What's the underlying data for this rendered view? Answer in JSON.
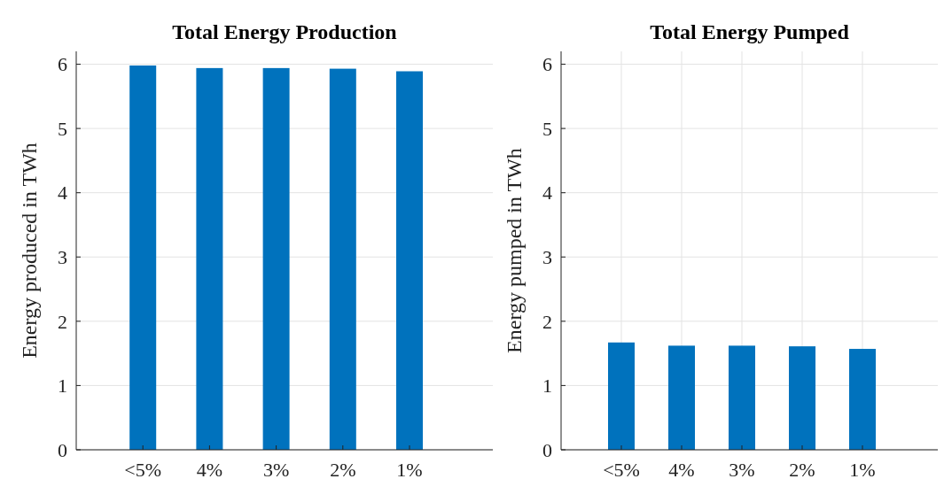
{
  "chart_data": [
    {
      "type": "bar",
      "title": "Total Energy Production",
      "ylabel": "Energy produced in TWh",
      "categories": [
        "<5%",
        "4%",
        "3%",
        "2%",
        "1%"
      ],
      "values": [
        5.98,
        5.94,
        5.94,
        5.93,
        5.89
      ],
      "color": "#0072bd",
      "ylim": [
        0,
        6.2
      ],
      "yticks": [
        0,
        1,
        2,
        3,
        4,
        5,
        6
      ],
      "grid": "y"
    },
    {
      "type": "bar",
      "title": "Total Energy Pumped",
      "ylabel": "Energy pumped in TWh",
      "categories": [
        "<5%",
        "4%",
        "3%",
        "2%",
        "1%"
      ],
      "values": [
        1.67,
        1.62,
        1.62,
        1.61,
        1.57
      ],
      "color": "#0072bd",
      "ylim": [
        0,
        6.2
      ],
      "yticks": [
        0,
        1,
        2,
        3,
        4,
        5,
        6
      ],
      "grid": true
    }
  ]
}
